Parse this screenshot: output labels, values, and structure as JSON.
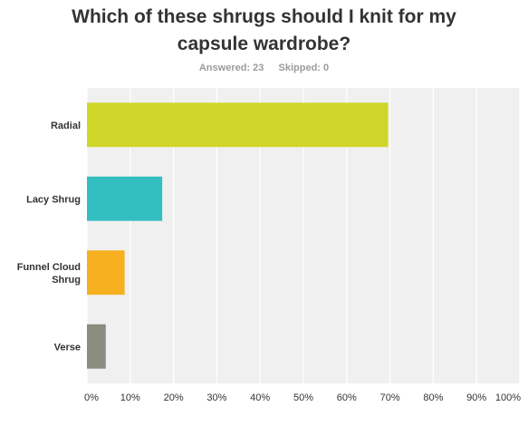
{
  "title": "Which of these shrugs should I knit for my capsule wardrobe?",
  "stats": {
    "answered": "Answered: 23",
    "skipped": "Skipped: 0"
  },
  "colors": {
    "plot_bg": "#f0f0f0",
    "grid": "#ffffff",
    "label": "#333333",
    "tick": "#333333"
  },
  "chart_data": {
    "type": "bar",
    "orientation": "horizontal",
    "title": "Which of these shrugs should I knit for my capsule wardrobe?",
    "categories": [
      "Radial",
      "Lacy Shrug",
      "Funnel Cloud Shrug",
      "Verse"
    ],
    "category_lines": [
      [
        "Radial"
      ],
      [
        "Lacy Shrug"
      ],
      [
        "Funnel Cloud",
        "Shrug"
      ],
      [
        "Verse"
      ]
    ],
    "values": [
      69.57,
      17.39,
      8.7,
      4.35
    ],
    "colors": [
      "#cfd629",
      "#33bec1",
      "#f6af1e",
      "#8b8c80"
    ],
    "xlim": [
      0,
      100
    ],
    "x_ticks": [
      0,
      10,
      20,
      30,
      40,
      50,
      60,
      70,
      80,
      90,
      100
    ],
    "x_tick_labels": [
      "0%",
      "10%",
      "20%",
      "30%",
      "40%",
      "50%",
      "60%",
      "70%",
      "80%",
      "90%",
      "100%"
    ],
    "grid": true
  }
}
